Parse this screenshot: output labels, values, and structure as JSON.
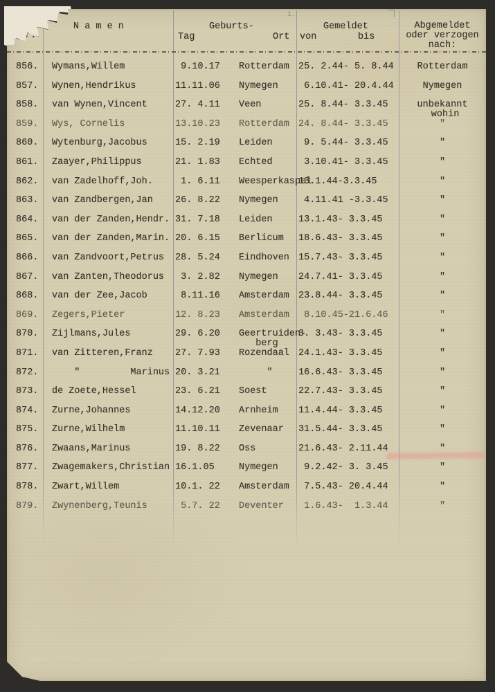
{
  "colors": {
    "background": "#2d2c29",
    "paper": "#d6ceb1",
    "ink": "#3a352c",
    "rule_line": "#83819e",
    "red_smudge": "#e79287",
    "torn_edge": "#e9e4d4"
  },
  "document": {
    "header": {
      "col_nr_line1": "fde.",
      "col_nr_line2": "Nr.",
      "col_namen": "N a m e n",
      "col_geburts": "Geburts-",
      "col_tag": "Tag",
      "col_ort": "Ort",
      "col_gemeldet": "Gemeldet",
      "col_von": "von",
      "col_bis": "bis",
      "col_abgemeldet_line1": "Abgemeldet",
      "col_abgemeldet_line2": "oder verzogen",
      "col_abgemeldet_line3": "nach:"
    },
    "pencil_mark": "1.",
    "rows": [
      {
        "nr": "856.",
        "name": "Wymans,Willem",
        "tag": " 9.10.17",
        "ort": "Rotterdam",
        "gemeldet": "25. 2.44- 5. 8.44",
        "abgemeldet": "Rotterdam"
      },
      {
        "nr": "857.",
        "name": "Wynen,Hendrikus",
        "tag": "11.11.06",
        "ort": "Nymegen",
        "gemeldet": " 6.10.41- 20.4.44",
        "abgemeldet": "Nymegen"
      },
      {
        "nr": "858.",
        "name": "van Wynen,Vincent",
        "tag": "27. 4.11",
        "ort": "Veen",
        "gemeldet": "25. 8.44- 3.3.45",
        "abgemeldet": "unbekannt\n wohin"
      },
      {
        "nr": "859.",
        "name": "Wys, Cornelis",
        "tag": "13.10.23",
        "ort": "Rotterdam",
        "gemeldet": "24. 8.44- 3.3.45",
        "abgemeldet": "\"",
        "faint": true
      },
      {
        "nr": "860.",
        "name": "Wytenburg,Jacobus",
        "tag": "15. 2.19",
        "ort": "Leiden",
        "gemeldet": " 9. 5.44- 3.3.45",
        "abgemeldet": "\""
      },
      {
        "nr": "861.",
        "name": "Zaayer,Philippus",
        "tag": "21. 1.83",
        "ort": "Echted",
        "gemeldet": " 3.10.41- 3.3.45",
        "abgemeldet": "\""
      },
      {
        "nr": "862.",
        "name": "van Zadelhoff,Joh.",
        "tag": " 1. 6.11",
        "ort": "Weesperkaspel",
        "gemeldet": "13.1.44-3.3.45",
        "abgemeldet": "\""
      },
      {
        "nr": "863.",
        "name": "van Zandbergen,Jan",
        "tag": "26. 8.22",
        "ort": "Nymegen",
        "gemeldet": " 4.11.41 -3.3.45",
        "abgemeldet": "\""
      },
      {
        "nr": "864.",
        "name": "van der Zanden,Hendr.",
        "tag": "31. 7.18",
        "ort": "Leiden",
        "gemeldet": "13.1.43- 3.3.45",
        "abgemeldet": "\""
      },
      {
        "nr": "865.",
        "name": "van der Zanden,Marin.",
        "tag": "20. 6.15",
        "ort": "Berlicum",
        "gemeldet": "18.6.43- 3.3.45",
        "abgemeldet": "\""
      },
      {
        "nr": "866.",
        "name": "van Zandvoort,Petrus",
        "tag": "28. 5.24",
        "ort": "Eindhoven",
        "gemeldet": "15.7.43- 3.3.45",
        "abgemeldet": "\""
      },
      {
        "nr": "867.",
        "name": "van Zanten,Theodorus",
        "tag": " 3. 2.82",
        "ort": "Nymegen",
        "gemeldet": "24.7.41- 3.3.45",
        "abgemeldet": "\""
      },
      {
        "nr": "868.",
        "name": "van der Zee,Jacob",
        "tag": " 8.11.16",
        "ort": "Amsterdam",
        "gemeldet": "23.8.44- 3.3.45",
        "abgemeldet": "\""
      },
      {
        "nr": "869.",
        "name": "Zegers,Pieter",
        "tag": "12. 8.23",
        "ort": "Amsterdam",
        "gemeldet": " 8.10.45-21.6.46",
        "abgemeldet": "\"",
        "faint": true
      },
      {
        "nr": "870.",
        "name": "Zijlmans,Jules",
        "tag": "29. 6.20",
        "ort": "Geertruiden-\n   berg",
        "gemeldet": "3. 3.43- 3.3.45",
        "abgemeldet": "\""
      },
      {
        "nr": "871.",
        "name": "van Zitteren,Franz",
        "tag": "27. 7.93",
        "ort": "Rozendaal",
        "gemeldet": "24.1.43- 3.3.45",
        "abgemeldet": "\""
      },
      {
        "nr": "872.",
        "name": "    \"         Marinus",
        "tag": "20. 3.21",
        "ort": "     \"",
        "gemeldet": "16.6.43- 3.3.45",
        "abgemeldet": "\""
      },
      {
        "nr": "873.",
        "name": "de Zoete,Hessel",
        "tag": "23. 6.21",
        "ort": "Soest",
        "gemeldet": "22.7.43- 3.3.45",
        "abgemeldet": "\""
      },
      {
        "nr": "874.",
        "name": "Zurne,Johannes",
        "tag": "14.12.20",
        "ort": "Arnheim",
        "gemeldet": "11.4.44- 3.3.45",
        "abgemeldet": "\""
      },
      {
        "nr": "875.",
        "name": "Zurne,Wilhelm",
        "tag": "11.10.11",
        "ort": "Zevenaar",
        "gemeldet": "31.5.44- 3.3.45",
        "abgemeldet": "\""
      },
      {
        "nr": "876.",
        "name": "Zwaans,Marinus",
        "tag": "19. 8.22",
        "ort": "Oss",
        "gemeldet": "21.6.43- 2.11.44",
        "abgemeldet": "\""
      },
      {
        "nr": "877.",
        "name": "Zwagemakers,Christian",
        "tag": "16.1.05",
        "ort": "Nymegen",
        "gemeldet": " 9.2.42- 3. 3.45",
        "abgemeldet": "\""
      },
      {
        "nr": "878.",
        "name": "Zwart,Willem",
        "tag": "10.1. 22",
        "ort": "Amsterdam",
        "gemeldet": " 7.5.43- 20.4.44",
        "abgemeldet": "\""
      },
      {
        "nr": "879.",
        "name": "Zwynenberg,Teunis",
        "tag": " 5.7. 22",
        "ort": "Deventer",
        "gemeldet": " 1.6.43-  1.3.44",
        "abgemeldet": "\"",
        "faint": true
      }
    ]
  }
}
